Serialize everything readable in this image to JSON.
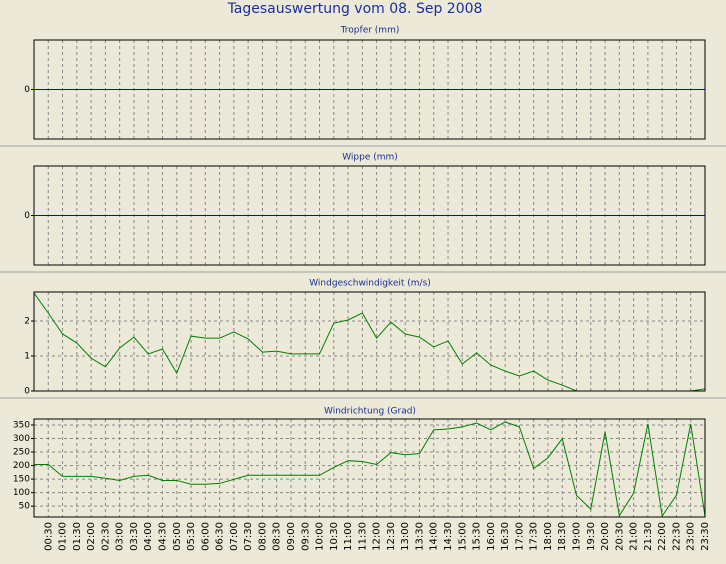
{
  "title": "Tagesauswertung vom 08. Sep 2008",
  "chart_data": [
    {
      "type": "line",
      "title": "Tropfer (mm)",
      "ylim": [
        -1,
        1
      ],
      "yticks": [
        0
      ],
      "zero_line_color": "#0000ff",
      "grid": true
    },
    {
      "type": "line",
      "title": "Wippe (mm)",
      "ylim": [
        -1,
        1
      ],
      "yticks": [
        0
      ],
      "zero_line_color": "#0000ff",
      "grid": true
    },
    {
      "type": "line",
      "title": "Windgeschwindigkeit (m/s)",
      "ylim": [
        0,
        2.83
      ],
      "yticks": [
        0,
        1,
        2
      ],
      "xlim": [
        0,
        23.5
      ],
      "grid": true,
      "x": [
        0,
        0.5,
        1,
        1.5,
        2,
        2.5,
        3,
        3.5,
        4,
        4.5,
        5,
        5.5,
        6,
        6.5,
        7,
        7.5,
        8,
        8.5,
        9,
        9.5,
        10,
        10.5,
        11,
        11.5,
        12,
        12.5,
        13,
        13.5,
        14,
        14.5,
        15,
        15.5,
        16,
        16.5,
        17,
        17.5,
        18,
        18.5,
        19,
        19.5,
        20,
        20.5,
        21,
        21.5,
        22,
        22.5,
        23,
        23.5
      ],
      "series": [
        {
          "color": "#008000",
          "values": [
            2.8,
            2.23,
            1.63,
            1.37,
            0.94,
            0.69,
            1.23,
            1.54,
            1.06,
            1.2,
            0.51,
            1.57,
            1.51,
            1.51,
            1.69,
            1.49,
            1.11,
            1.14,
            1.06,
            1.06,
            1.06,
            1.94,
            2.03,
            2.23,
            1.51,
            1.97,
            1.63,
            1.54,
            1.26,
            1.43,
            0.77,
            1.09,
            0.74,
            0.57,
            0.43,
            0.57,
            0.31,
            0.17,
            0,
            0,
            0,
            0,
            0,
            0,
            0,
            0,
            0,
            0.06
          ]
        }
      ]
    },
    {
      "type": "line",
      "title": "Windrichtung (Grad)",
      "ylim": [
        10,
        372
      ],
      "yticks": [
        50,
        100,
        150,
        200,
        250,
        300,
        350
      ],
      "xlim": [
        0,
        23.5
      ],
      "grid": true,
      "x": [
        0,
        0.5,
        1,
        1.5,
        2,
        2.5,
        3,
        3.5,
        4,
        4.5,
        5,
        5.5,
        6,
        6.5,
        7,
        7.5,
        8,
        8.5,
        9,
        9.5,
        10,
        10.5,
        11,
        11.5,
        12,
        12.5,
        13,
        13.5,
        14,
        14.5,
        15,
        15.5,
        16,
        16.5,
        17,
        17.5,
        18,
        18.5,
        19,
        19.5,
        20,
        20.5,
        21,
        21.5,
        22,
        22.5,
        23,
        23.5
      ],
      "series": [
        {
          "color": "#008000",
          "values": [
            204,
            204,
            160,
            160,
            160,
            153,
            145,
            160,
            164,
            145,
            145,
            131,
            131,
            134,
            149,
            164,
            164,
            164,
            164,
            164,
            164,
            193,
            218,
            215,
            204,
            248,
            240,
            244,
            332,
            335,
            343,
            357,
            332,
            361,
            343,
            189,
            229,
            299,
            90,
            39,
            324,
            15,
            98,
            354,
            14,
            90,
            354,
            14
          ]
        }
      ],
      "xticks": [
        {
          "value": 0.5,
          "label": "00:30"
        },
        {
          "value": 1,
          "label": "01:00"
        },
        {
          "value": 1.5,
          "label": "01:30"
        },
        {
          "value": 2,
          "label": "02:00"
        },
        {
          "value": 2.5,
          "label": "02:30"
        },
        {
          "value": 3,
          "label": "03:00"
        },
        {
          "value": 3.5,
          "label": "03:30"
        },
        {
          "value": 4,
          "label": "04:00"
        },
        {
          "value": 4.5,
          "label": "04:30"
        },
        {
          "value": 5,
          "label": "05:00"
        },
        {
          "value": 5.5,
          "label": "05:30"
        },
        {
          "value": 6,
          "label": "06:00"
        },
        {
          "value": 6.5,
          "label": "06:30"
        },
        {
          "value": 7,
          "label": "07:00"
        },
        {
          "value": 7.5,
          "label": "07:30"
        },
        {
          "value": 8,
          "label": "08:00"
        },
        {
          "value": 8.5,
          "label": "08:30"
        },
        {
          "value": 9,
          "label": "09:00"
        },
        {
          "value": 9.5,
          "label": "09:30"
        },
        {
          "value": 10,
          "label": "10:00"
        },
        {
          "value": 10.5,
          "label": "10:30"
        },
        {
          "value": 11,
          "label": "11:00"
        },
        {
          "value": 11.5,
          "label": "11:30"
        },
        {
          "value": 12,
          "label": "12:00"
        },
        {
          "value": 12.5,
          "label": "12:30"
        },
        {
          "value": 13,
          "label": "13:00"
        },
        {
          "value": 13.5,
          "label": "13:30"
        },
        {
          "value": 14,
          "label": "14:00"
        },
        {
          "value": 14.5,
          "label": "14:30"
        },
        {
          "value": 15,
          "label": "15:00"
        },
        {
          "value": 15.5,
          "label": "15:30"
        },
        {
          "value": 16,
          "label": "16:00"
        },
        {
          "value": 16.5,
          "label": "16:30"
        },
        {
          "value": 17,
          "label": "17:00"
        },
        {
          "value": 17.5,
          "label": "17:30"
        },
        {
          "value": 18,
          "label": "18:00"
        },
        {
          "value": 18.5,
          "label": "18:30"
        },
        {
          "value": 19,
          "label": "19:00"
        },
        {
          "value": 19.5,
          "label": "19:30"
        },
        {
          "value": 20,
          "label": "20:00"
        },
        {
          "value": 20.5,
          "label": "20:30"
        },
        {
          "value": 21,
          "label": "21:00"
        },
        {
          "value": 21.5,
          "label": "21:30"
        },
        {
          "value": 22,
          "label": "22:00"
        },
        {
          "value": 22.5,
          "label": "22:30"
        },
        {
          "value": 23,
          "label": "23:00"
        },
        {
          "value": 23.5,
          "label": "23:30"
        }
      ]
    }
  ]
}
